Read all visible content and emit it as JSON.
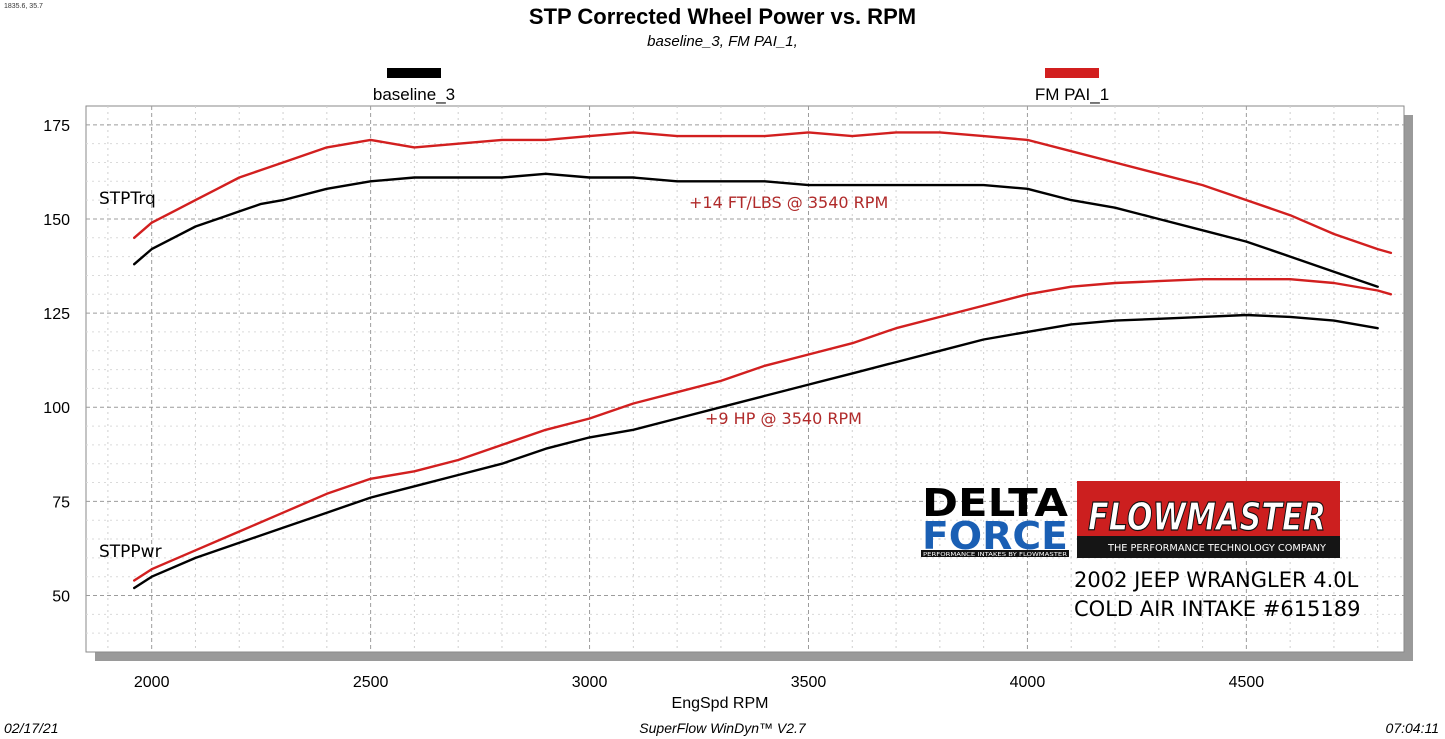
{
  "corner_readout": "1835.6, 35.7",
  "chart_data": {
    "type": "line",
    "title": "STP Corrected Wheel Power vs. RPM",
    "subtitle": "baseline_3, FM PAI_1,",
    "xlabel": "EngSpd  RPM",
    "ylabel": "",
    "xlim": [
      1850,
      4860
    ],
    "ylim": [
      35,
      180
    ],
    "x_ticks": [
      2000,
      2500,
      3000,
      3500,
      4000,
      4500
    ],
    "y_ticks": [
      50,
      75,
      100,
      125,
      150,
      175
    ],
    "grid": true,
    "legend": [
      {
        "name": "baseline_3",
        "color": "#000000"
      },
      {
        "name": "FM PAI_1",
        "color": "#d21f1f"
      }
    ],
    "curve_labels": {
      "torque": "STPTrq",
      "power": "STPPwr"
    },
    "series": [
      {
        "name": "baseline_3",
        "quantity": "STPTrq",
        "color": "#000000",
        "x": [
          1960,
          2000,
          2050,
          2100,
          2150,
          2200,
          2250,
          2300,
          2400,
          2500,
          2600,
          2700,
          2800,
          2900,
          3000,
          3100,
          3200,
          3300,
          3400,
          3500,
          3600,
          3700,
          3800,
          3900,
          4000,
          4100,
          4200,
          4300,
          4400,
          4500,
          4600,
          4700,
          4800
        ],
        "y": [
          138,
          142,
          145,
          148,
          150,
          152,
          154,
          155,
          158,
          160,
          161,
          161,
          161,
          162,
          161,
          161,
          160,
          160,
          160,
          159,
          159,
          159,
          159,
          159,
          158,
          155,
          153,
          150,
          147,
          144,
          140,
          136,
          132
        ]
      },
      {
        "name": "FM PAI_1",
        "quantity": "STPTrq",
        "color": "#d21f1f",
        "x": [
          1960,
          2000,
          2050,
          2100,
          2150,
          2200,
          2250,
          2300,
          2400,
          2500,
          2550,
          2600,
          2700,
          2800,
          2900,
          3000,
          3100,
          3200,
          3300,
          3400,
          3500,
          3600,
          3700,
          3800,
          3900,
          4000,
          4100,
          4200,
          4300,
          4400,
          4500,
          4600,
          4700,
          4800,
          4830
        ],
        "y": [
          145,
          149,
          152,
          155,
          158,
          161,
          163,
          165,
          169,
          171,
          170,
          169,
          170,
          171,
          171,
          172,
          173,
          172,
          172,
          172,
          173,
          172,
          173,
          173,
          172,
          171,
          168,
          165,
          162,
          159,
          155,
          151,
          146,
          142,
          141
        ]
      },
      {
        "name": "baseline_3",
        "quantity": "STPPwr",
        "color": "#000000",
        "x": [
          1960,
          2000,
          2100,
          2200,
          2300,
          2400,
          2500,
          2600,
          2700,
          2800,
          2900,
          3000,
          3100,
          3200,
          3300,
          3400,
          3500,
          3600,
          3700,
          3800,
          3900,
          4000,
          4100,
          4200,
          4300,
          4400,
          4500,
          4600,
          4700,
          4800
        ],
        "y": [
          52,
          55,
          60,
          64,
          68,
          72,
          76,
          79,
          82,
          85,
          89,
          92,
          94,
          97,
          100,
          103,
          106,
          109,
          112,
          115,
          118,
          120,
          122,
          123,
          123.5,
          124,
          124.5,
          124,
          123,
          121
        ]
      },
      {
        "name": "FM PAI_1",
        "quantity": "STPPwr",
        "color": "#d21f1f",
        "x": [
          1960,
          2000,
          2100,
          2200,
          2300,
          2400,
          2500,
          2600,
          2700,
          2800,
          2900,
          3000,
          3100,
          3200,
          3300,
          3400,
          3500,
          3600,
          3700,
          3800,
          3900,
          4000,
          4100,
          4200,
          4300,
          4400,
          4500,
          4600,
          4700,
          4800,
          4830
        ],
        "y": [
          54,
          57,
          62,
          67,
          72,
          77,
          81,
          83,
          86,
          90,
          94,
          97,
          101,
          104,
          107,
          111,
          114,
          117,
          121,
          124,
          127,
          130,
          132,
          133,
          133.5,
          134,
          134,
          134,
          133,
          131,
          130
        ]
      }
    ],
    "annotations": {
      "torque_gain": "+14 FT/LBS @ 3540 RPM",
      "power_gain": "+9 HP @ 3540 RPM"
    }
  },
  "logos": {
    "delta_force": {
      "line1": "DELTA",
      "line2": "FORCE",
      "tagline": "PERFORMANCE INTAKES BY FLOWMASTER"
    },
    "flowmaster": {
      "name": "FLOWMASTER",
      "tagline": "THE PERFORMANCE TECHNOLOGY COMPANY"
    }
  },
  "caption": {
    "line1": "2002 JEEP WRANGLER 4.0L",
    "line2": "COLD AIR INTAKE #615189"
  },
  "footer": {
    "date": "02/17/21",
    "software": "SuperFlow WinDyn™  V2.7",
    "time": "07:04:11"
  },
  "colors": {
    "red": "#d21f1f",
    "black": "#000000",
    "annotation": "#b02a2a",
    "df_blue": "#1a5fb4",
    "fm_red": "#cc1f1f"
  }
}
